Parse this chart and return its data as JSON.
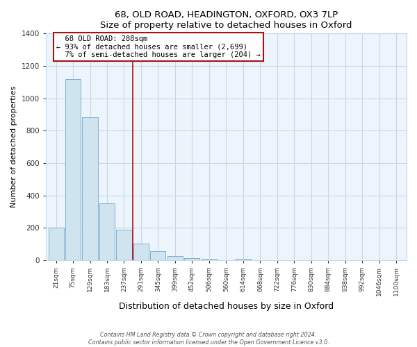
{
  "title": "68, OLD ROAD, HEADINGTON, OXFORD, OX3 7LP",
  "subtitle": "Size of property relative to detached houses in Oxford",
  "xlabel": "Distribution of detached houses by size in Oxford",
  "ylabel": "Number of detached properties",
  "bar_labels": [
    "21sqm",
    "75sqm",
    "129sqm",
    "183sqm",
    "237sqm",
    "291sqm",
    "345sqm",
    "399sqm",
    "452sqm",
    "506sqm",
    "560sqm",
    "614sqm",
    "668sqm",
    "722sqm",
    "776sqm",
    "830sqm",
    "884sqm",
    "938sqm",
    "992sqm",
    "1046sqm",
    "1100sqm"
  ],
  "bar_heights": [
    200,
    1120,
    885,
    350,
    190,
    105,
    55,
    25,
    15,
    10,
    0,
    10,
    0,
    0,
    0,
    0,
    0,
    0,
    0,
    0,
    0
  ],
  "property_label": "68 OLD ROAD: 288sqm",
  "smaller_pct": "93%",
  "smaller_count": "2,699",
  "larger_pct": "7%",
  "larger_count": "204",
  "bar_color": "#d0e4f0",
  "bar_edge_color": "#7bafd4",
  "vline_color": "#aa1111",
  "vline_x": 4.5,
  "annotation_box_edge": "#aa1111",
  "ylim": [
    0,
    1400
  ],
  "yticks": [
    0,
    200,
    400,
    600,
    800,
    1000,
    1200,
    1400
  ],
  "bg_color": "#edf4fb",
  "grid_color": "#c5d8ea",
  "footer_line1": "Contains HM Land Registry data © Crown copyright and database right 2024.",
  "footer_line2": "Contains public sector information licensed under the Open Government Licence v3.0."
}
